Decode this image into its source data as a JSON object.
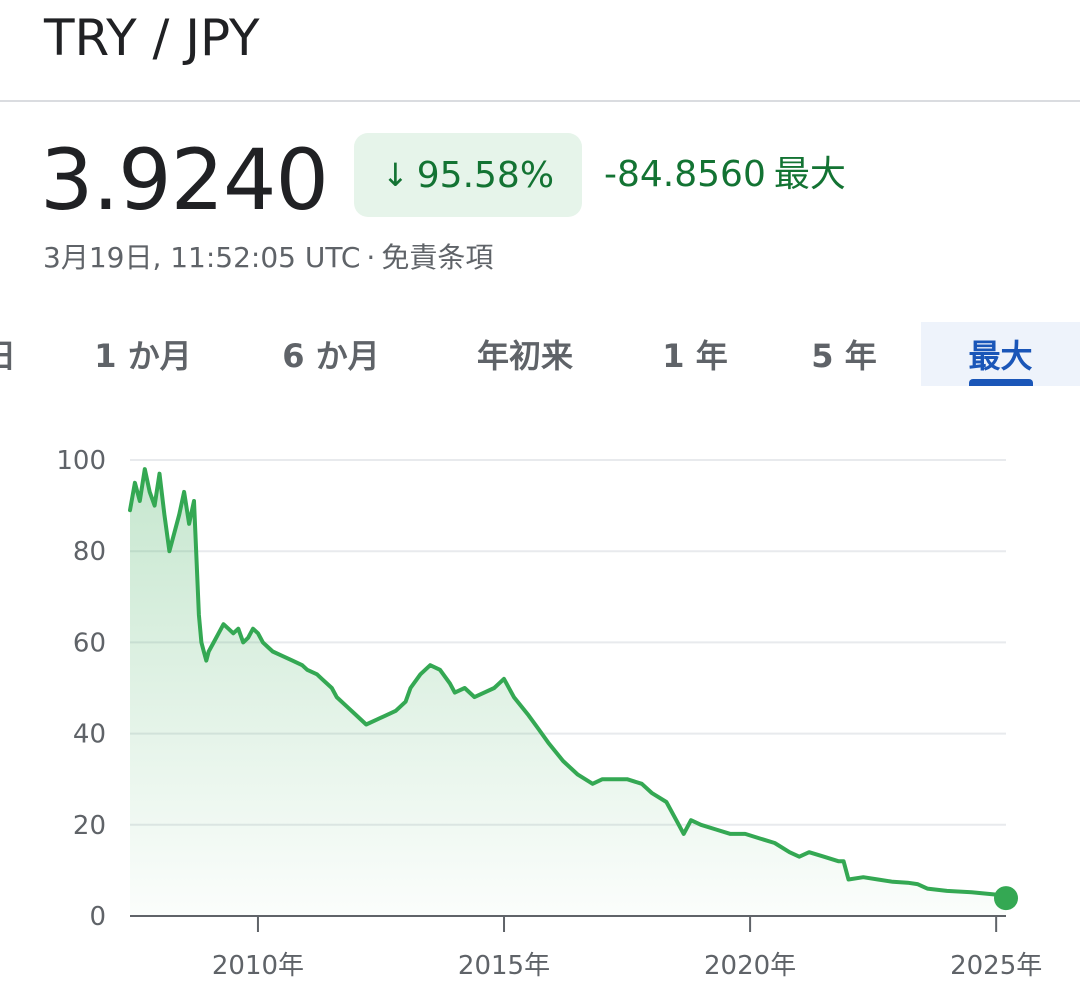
{
  "header": {
    "pair": "TRY / JPY"
  },
  "quote": {
    "price": "3.9240",
    "change_percent": "95.58%",
    "change_arrow": "↓",
    "change_absolute": "-84.8560",
    "range_tag": "最大",
    "timestamp": "3月19日, 11:52:05 UTC",
    "separator": "·",
    "disclaimer": "免責条項"
  },
  "tabs": [
    {
      "label": "日",
      "active": false
    },
    {
      "label": "1 か月",
      "active": false
    },
    {
      "label": "6 か月",
      "active": false
    },
    {
      "label": "年初来",
      "active": false
    },
    {
      "label": "1 年",
      "active": false
    },
    {
      "label": "5 年",
      "active": false
    },
    {
      "label": "最大",
      "active": true
    }
  ],
  "colors": {
    "line": "#34a853",
    "positive_text": "#137333",
    "chip_bg": "#e6f4ea",
    "active_tab": "#1a56b8"
  },
  "chart_data": {
    "type": "area",
    "title": "",
    "xlabel": "",
    "ylabel": "",
    "ylim": [
      0,
      100
    ],
    "y_ticks": [
      "0",
      "20",
      "40",
      "60",
      "80",
      "100"
    ],
    "y_tick_values": [
      0,
      20,
      40,
      60,
      80,
      100
    ],
    "x_tick_labels": [
      "2010年",
      "2015年",
      "2020年",
      "2025年"
    ],
    "x_tick_values": [
      2010,
      2015,
      2020,
      2025
    ],
    "xlim": [
      2007.4,
      2025.2
    ],
    "grid": true,
    "series": [
      {
        "x": [
          2007.4,
          2007.5,
          2007.6,
          2007.7,
          2007.8,
          2007.9,
          2008.0,
          2008.1,
          2008.2,
          2008.3,
          2008.4,
          2008.5,
          2008.6,
          2008.7,
          2008.8,
          2008.85,
          2008.9,
          2008.95,
          2009.0,
          2009.1,
          2009.2,
          2009.3,
          2009.4,
          2009.5,
          2009.6,
          2009.7,
          2009.8,
          2009.9,
          2010.0,
          2010.1,
          2010.2,
          2010.3,
          2010.5,
          2010.7,
          2010.9,
          2011.0,
          2011.2,
          2011.3,
          2011.5,
          2011.6,
          2011.8,
          2012.0,
          2012.2,
          2012.4,
          2012.6,
          2012.8,
          2013.0,
          2013.1,
          2013.3,
          2013.5,
          2013.7,
          2013.9,
          2014.0,
          2014.2,
          2014.4,
          2014.6,
          2014.8,
          2014.9,
          2015.0,
          2015.2,
          2015.5,
          2015.7,
          2015.9,
          2016.2,
          2016.5,
          2016.8,
          2017.0,
          2017.2,
          2017.5,
          2017.8,
          2018.0,
          2018.3,
          2018.5,
          2018.65,
          2018.8,
          2019.0,
          2019.3,
          2019.6,
          2019.9,
          2020.2,
          2020.5,
          2020.8,
          2021.0,
          2021.2,
          2021.5,
          2021.8,
          2021.9,
          2022.0,
          2022.3,
          2022.6,
          2022.9,
          2023.2,
          2023.4,
          2023.6,
          2024.0,
          2024.5,
          2025.0,
          2025.2
        ],
        "y": [
          89,
          95,
          91,
          98,
          93,
          90,
          97,
          88,
          80,
          84,
          88,
          93,
          86,
          91,
          66,
          60,
          58,
          56,
          58,
          60,
          62,
          64,
          63,
          62,
          63,
          60,
          61,
          63,
          62,
          60,
          59,
          58,
          57,
          56,
          55,
          54,
          53,
          52,
          50,
          48,
          46,
          44,
          42,
          43,
          44,
          45,
          47,
          50,
          53,
          55,
          54,
          51,
          49,
          50,
          48,
          49,
          50,
          51,
          52,
          48,
          44,
          41,
          38,
          34,
          31,
          29,
          30,
          30,
          30,
          29,
          27,
          25,
          21,
          18,
          21,
          20,
          19,
          18,
          18,
          17,
          16,
          14,
          13,
          14,
          13,
          12,
          12,
          8,
          8.5,
          8,
          7.5,
          7.3,
          7,
          6,
          5.5,
          5.2,
          4.7,
          3.92
        ]
      }
    ],
    "last_value": 3.924
  }
}
